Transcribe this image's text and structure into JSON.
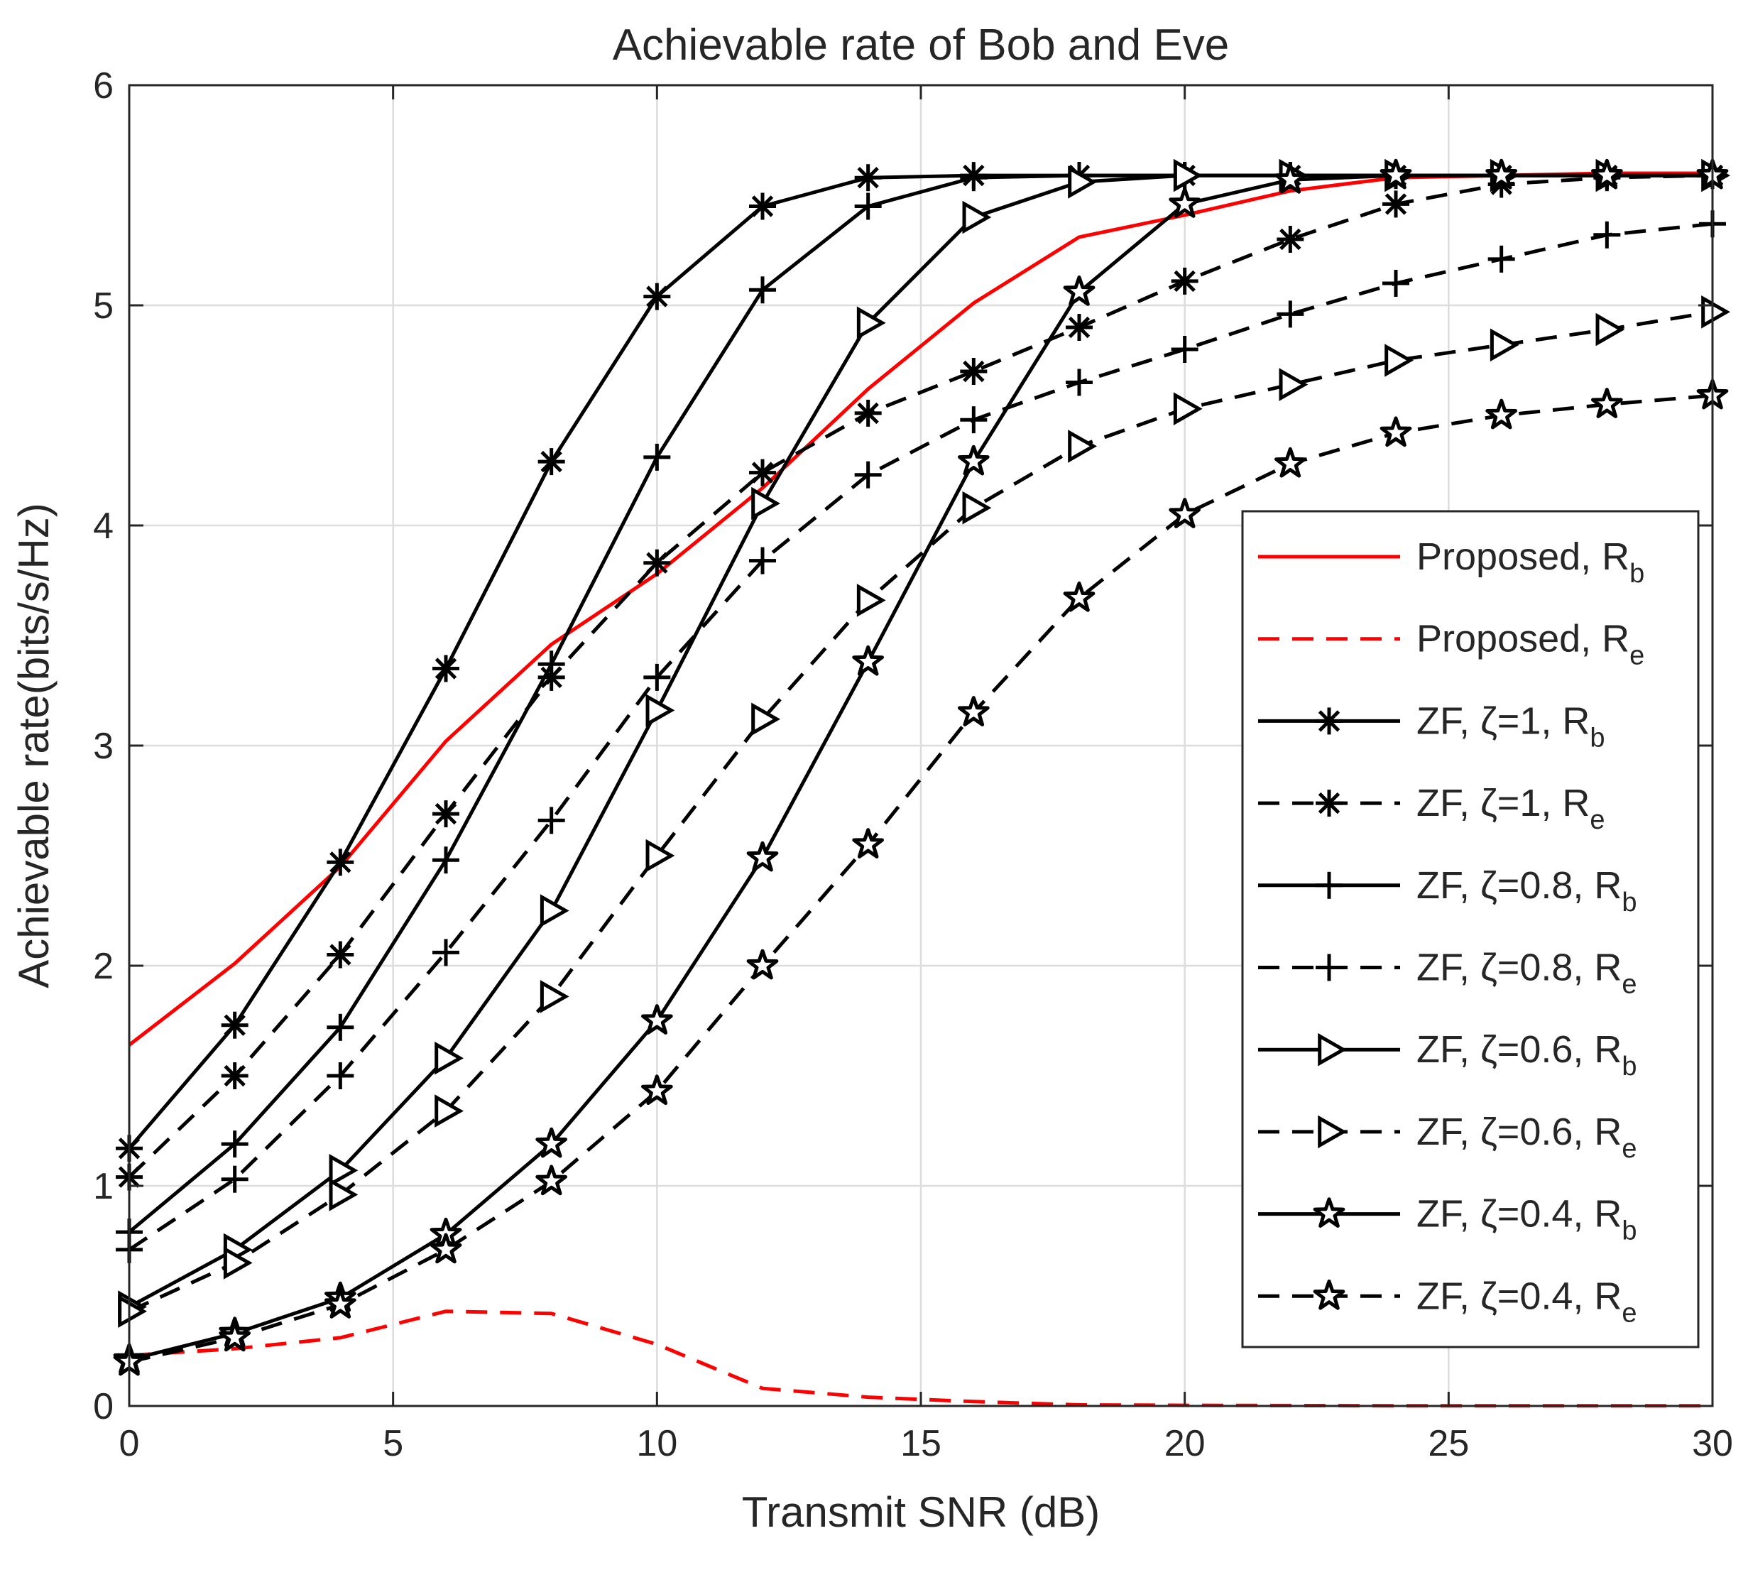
{
  "chart_data": {
    "type": "line",
    "title": "Achievable rate of  Bob and Eve",
    "xlabel": "Transmit SNR (dB)",
    "ylabel": "Achievable rate(bits/s/Hz)",
    "xlim": [
      0,
      30
    ],
    "ylim": [
      0,
      6
    ],
    "xticks": [
      0,
      5,
      10,
      15,
      20,
      25,
      30
    ],
    "yticks": [
      0,
      1,
      2,
      3,
      4,
      5,
      6
    ],
    "grid": true,
    "legend_position": "right-center",
    "x": [
      0,
      2,
      4,
      6,
      8,
      10,
      12,
      14,
      16,
      18,
      20,
      22,
      24,
      26,
      28,
      30
    ],
    "series": [
      {
        "name": "Proposed, R",
        "sub": "b",
        "color": "#ff0000",
        "dash": "solid",
        "marker": "none",
        "values": [
          1.64,
          2.01,
          2.45,
          3.02,
          3.46,
          3.78,
          4.17,
          4.62,
          5.01,
          5.31,
          5.41,
          5.52,
          5.58,
          5.59,
          5.6,
          5.6
        ]
      },
      {
        "name": "Proposed, R",
        "sub": "e",
        "color": "#ff0000",
        "dash": "dashed",
        "marker": "none",
        "values": [
          0.23,
          0.26,
          0.31,
          0.43,
          0.42,
          0.28,
          0.08,
          0.04,
          0.02,
          0.005,
          0.003,
          0.002,
          0.001,
          0.001,
          0.001,
          0.001
        ]
      },
      {
        "name": "ZF, ζ=1, R",
        "sub": "b",
        "color": "#000000",
        "dash": "solid",
        "marker": "asterisk",
        "values": [
          1.17,
          1.73,
          2.47,
          3.35,
          4.29,
          5.04,
          5.45,
          5.58,
          5.59,
          5.59,
          5.59,
          5.59,
          5.59,
          5.59,
          5.59,
          5.59
        ]
      },
      {
        "name": "ZF, ζ=1, R",
        "sub": "e",
        "color": "#000000",
        "dash": "dashed",
        "marker": "asterisk",
        "values": [
          1.04,
          1.5,
          2.05,
          2.69,
          3.31,
          3.83,
          4.24,
          4.51,
          4.7,
          4.9,
          5.11,
          5.3,
          5.46,
          5.55,
          5.58,
          5.59
        ]
      },
      {
        "name": "ZF, ζ=0.8, R",
        "sub": "b",
        "color": "#000000",
        "dash": "solid",
        "marker": "plus",
        "values": [
          0.79,
          1.19,
          1.72,
          2.48,
          3.37,
          4.31,
          5.07,
          5.45,
          5.58,
          5.59,
          5.59,
          5.59,
          5.59,
          5.59,
          5.59,
          5.59
        ]
      },
      {
        "name": "ZF, ζ=0.8, R",
        "sub": "e",
        "color": "#000000",
        "dash": "dashed",
        "marker": "plus",
        "values": [
          0.71,
          1.03,
          1.5,
          2.06,
          2.66,
          3.31,
          3.84,
          4.23,
          4.48,
          4.65,
          4.8,
          4.96,
          5.1,
          5.21,
          5.32,
          5.37
        ]
      },
      {
        "name": "ZF, ζ=0.6, R",
        "sub": "b",
        "color": "#000000",
        "dash": "solid",
        "marker": "triangle",
        "values": [
          0.45,
          0.71,
          1.07,
          1.58,
          2.25,
          3.16,
          4.1,
          4.92,
          5.4,
          5.56,
          5.59,
          5.59,
          5.59,
          5.59,
          5.59,
          5.59
        ]
      },
      {
        "name": "ZF, ζ=0.6, R",
        "sub": "e",
        "color": "#000000",
        "dash": "dashed",
        "marker": "triangle",
        "values": [
          0.43,
          0.65,
          0.96,
          1.34,
          1.86,
          2.5,
          3.12,
          3.66,
          4.08,
          4.36,
          4.53,
          4.64,
          4.75,
          4.82,
          4.89,
          4.97
        ]
      },
      {
        "name": "ZF, ζ=0.4, R",
        "sub": "b",
        "color": "#000000",
        "dash": "solid",
        "marker": "star",
        "values": [
          0.21,
          0.33,
          0.49,
          0.78,
          1.19,
          1.75,
          2.49,
          3.38,
          4.29,
          5.06,
          5.46,
          5.57,
          5.59,
          5.59,
          5.59,
          5.59
        ]
      },
      {
        "name": "ZF, ζ=0.4, R",
        "sub": "e",
        "color": "#000000",
        "dash": "dashed",
        "marker": "star",
        "values": [
          0.2,
          0.31,
          0.46,
          0.71,
          1.02,
          1.43,
          2.0,
          2.55,
          3.15,
          3.67,
          4.05,
          4.28,
          4.42,
          4.5,
          4.55,
          4.59
        ]
      }
    ]
  }
}
